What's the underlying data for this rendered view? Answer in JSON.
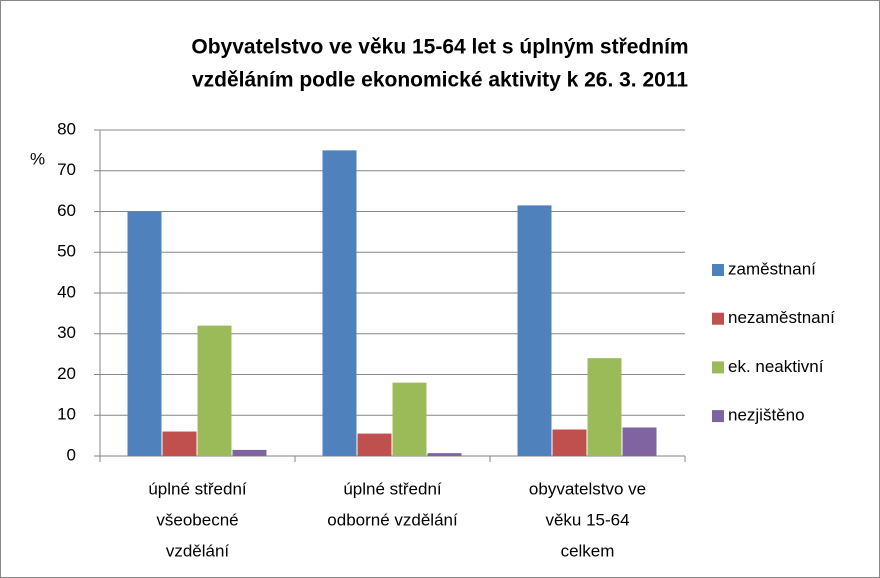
{
  "chart_data": {
    "type": "bar",
    "title": [
      "Obyvatelstvo ve věku 15-64  let s úplným středním",
      "vzděláním podle ekonomické aktivity k 26. 3. 2011"
    ],
    "y_label": "%",
    "categories": [
      [
        "úplné střední",
        "všeobecné",
        "vzdělání"
      ],
      [
        "úplné střední",
        "odborné vzdělání"
      ],
      [
        "obyvatelstvo ve",
        "věku 15-64",
        "celkem"
      ]
    ],
    "series": [
      {
        "name": "zaměstnaní",
        "color": "#4f81bd",
        "values": [
          60,
          75,
          61.5
        ]
      },
      {
        "name": "nezaměstnaní",
        "color": "#c0504d",
        "values": [
          6,
          5.5,
          6.5
        ]
      },
      {
        "name": "ek. neaktivní",
        "color": "#9bbb59",
        "values": [
          32,
          18,
          24
        ]
      },
      {
        "name": "nezjištěno",
        "color": "#8064a2",
        "values": [
          1.5,
          0.7,
          7
        ]
      }
    ],
    "ylim": [
      0,
      80
    ],
    "yticks": [
      0,
      10,
      20,
      30,
      40,
      50,
      60,
      70,
      80
    ],
    "grid": true,
    "legend": "right"
  }
}
